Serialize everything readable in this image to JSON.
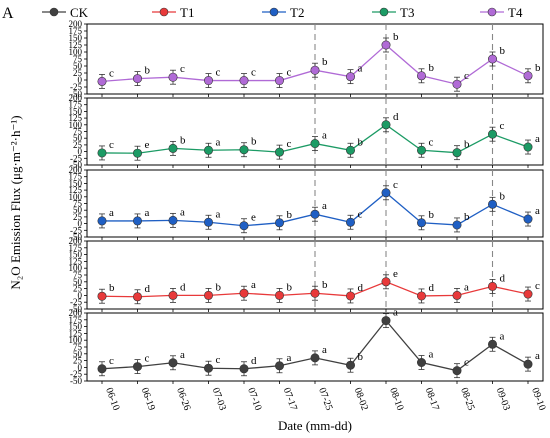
{
  "chart_data": {
    "type": "line",
    "panel_letter": "A",
    "xlabel": "Date (mm-dd)",
    "ylabel": "N₂O Emission Flux (μg·m⁻²·h⁻¹)",
    "categories": [
      "06-10",
      "06-19",
      "06-26",
      "07-03",
      "07-10",
      "07-17",
      "07-25",
      "08-02",
      "08-10",
      "08-17",
      "08-25",
      "09-03",
      "09-10"
    ],
    "ylim": [
      -50,
      200
    ],
    "yticks": [
      -50,
      -25,
      0,
      25,
      50,
      75,
      100,
      125,
      150,
      175,
      200
    ],
    "ytick_labels": [
      "-50",
      "-25",
      "0",
      "25",
      "50",
      "75",
      "100",
      "125",
      "150",
      "175",
      "200"
    ],
    "dashed_lines_at": [
      "07-25",
      "08-10",
      "09-03"
    ],
    "legend_position": "top",
    "panel_order": [
      "T4",
      "T3",
      "T2",
      "T1",
      "CK"
    ],
    "series": [
      {
        "name": "CK",
        "color": "#404040",
        "values": [
          -5,
          3,
          17,
          -3,
          -5,
          6,
          35,
          8,
          172,
          18,
          -12,
          85,
          12
        ],
        "letters": [
          "c",
          "c",
          "a",
          "c",
          "d",
          "a",
          "a",
          "b",
          "a",
          "a",
          "c",
          "a",
          "a"
        ]
      },
      {
        "name": "T1",
        "color": "#e8393a",
        "values": [
          -3,
          -5,
          0,
          0,
          8,
          0,
          8,
          -2,
          50,
          -2,
          0,
          33,
          5
        ],
        "letters": [
          "b",
          "d",
          "d",
          "b",
          "a",
          "b",
          "b",
          "d",
          "e",
          "d",
          "a",
          "d",
          "c"
        ]
      },
      {
        "name": "T2",
        "color": "#1f5fc4",
        "values": [
          10,
          10,
          12,
          5,
          -8,
          3,
          35,
          5,
          115,
          3,
          -5,
          72,
          17
        ],
        "letters": [
          "a",
          "a",
          "a",
          "a",
          "e",
          "b",
          "a",
          "c",
          "c",
          "b",
          "b",
          "b",
          "a"
        ]
      },
      {
        "name": "T3",
        "color": "#1c9b65",
        "values": [
          -5,
          -6,
          12,
          5,
          7,
          -2,
          30,
          5,
          100,
          5,
          -4,
          65,
          17
        ],
        "letters": [
          "c",
          "e",
          "b",
          "a",
          "b",
          "c",
          "a",
          "b",
          "d",
          "c",
          "b",
          "c",
          "a"
        ]
      },
      {
        "name": "T4",
        "color": "#b06ad6",
        "values": [
          -5,
          5,
          10,
          -2,
          -2,
          -2,
          35,
          12,
          125,
          15,
          -15,
          75,
          15
        ],
        "letters": [
          "c",
          "b",
          "c",
          "c",
          "c",
          "c",
          "b",
          "a",
          "b",
          "b",
          "c",
          "b",
          "b"
        ]
      }
    ]
  }
}
